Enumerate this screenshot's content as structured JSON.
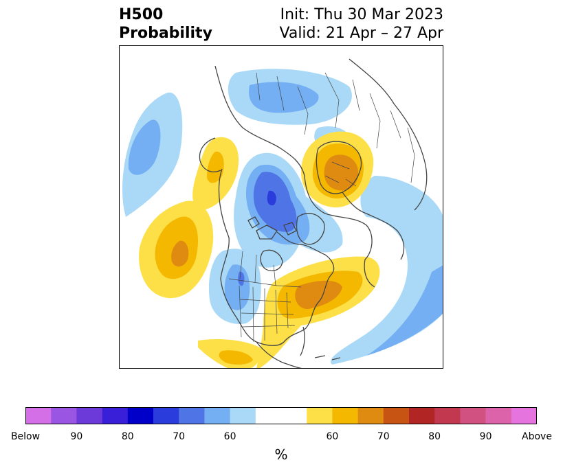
{
  "title": {
    "left_line1": "H500",
    "left_line2": "Probability",
    "right_line1": "Init: Thu 30 Mar 2023",
    "right_line2": "Valid: 21 Apr – 27 Apr"
  },
  "map": {
    "projection": "polar-stereographic",
    "coastline_color": "#444444",
    "features": [
      {
        "kind": "below",
        "level": "40-50",
        "region": "NE Pacific / Aleutians"
      },
      {
        "kind": "below",
        "level": "40-50",
        "region": "Siberia / East Asia"
      },
      {
        "kind": "below",
        "level": "50-60",
        "region": "East Siberia"
      },
      {
        "kind": "below",
        "level": "70-80",
        "region": "Arctic / N Canada"
      },
      {
        "kind": "below",
        "level": "40-50",
        "region": "Western North America"
      },
      {
        "kind": "below",
        "level": "40-50",
        "region": "North Atlantic / Europe"
      },
      {
        "kind": "above",
        "level": "50-60",
        "region": "Gulf of Alaska"
      },
      {
        "kind": "above",
        "level": "60-70",
        "region": "Central Pacific"
      },
      {
        "kind": "above",
        "level": "60-70",
        "region": "Scandinavia"
      },
      {
        "kind": "above",
        "level": "60-70",
        "region": "Eastern US / Great Lakes"
      },
      {
        "kind": "above",
        "level": "40-50",
        "region": "Subtropical Pacific"
      }
    ]
  },
  "colorbar": {
    "colors": [
      "#d46fe8",
      "#9a56e2",
      "#6b3ad8",
      "#3a1fd8",
      "#0000c8",
      "#2a3ddc",
      "#4f74e6",
      "#74aef3",
      "#a9d9f7",
      "#ffffff",
      "#ffffff",
      "#fde047",
      "#f4b800",
      "#df8a10",
      "#c85414",
      "#b12525",
      "#c2384f",
      "#d15181",
      "#dc62aa",
      "#e674de"
    ],
    "ticks_left": [
      "Below",
      "90",
      "80",
      "70",
      "60"
    ],
    "ticks_right": [
      "60",
      "70",
      "80",
      "90",
      "Above"
    ],
    "unit_label": "%"
  }
}
